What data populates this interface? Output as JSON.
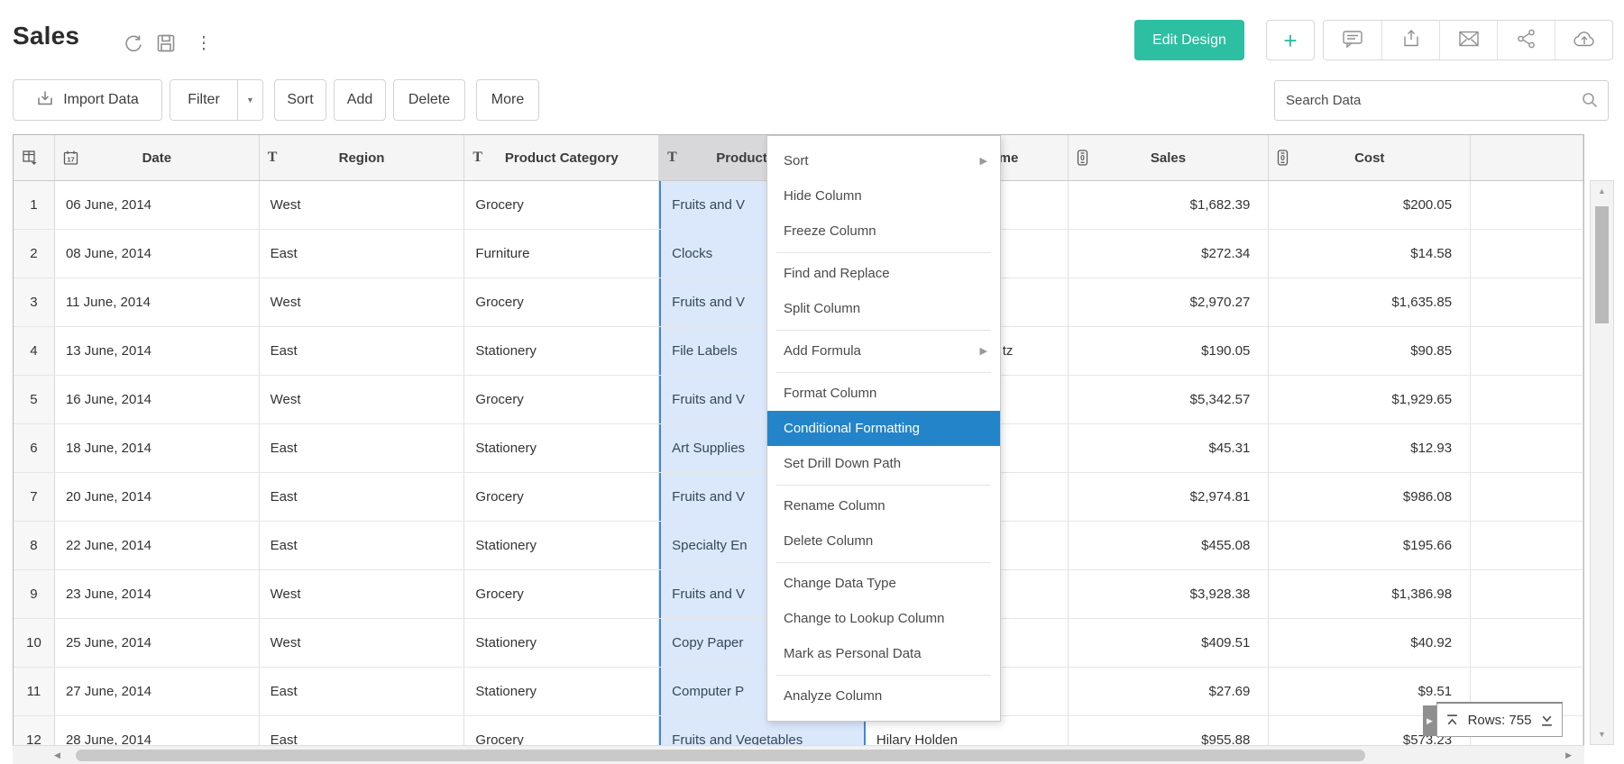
{
  "header": {
    "title": "Sales",
    "title_icons": [
      "refresh",
      "save",
      "kebab-menu"
    ],
    "edit_design_label": "Edit Design",
    "plus_label": "+",
    "action_icons": [
      "comment",
      "export",
      "email",
      "share",
      "cloud-upload"
    ]
  },
  "toolbar": {
    "import_label": "Import Data",
    "filter_label": "Filter",
    "sort_label": "Sort",
    "add_label": "Add",
    "delete_label": "Delete",
    "more_label": "More",
    "search_placeholder": "Search Data"
  },
  "table": {
    "columns": [
      {
        "key": "num",
        "label": "",
        "icon": "table-select"
      },
      {
        "key": "date",
        "label": "Date",
        "icon": "calendar"
      },
      {
        "key": "region",
        "label": "Region",
        "icon": "text"
      },
      {
        "key": "category",
        "label": "Product Category",
        "icon": "text"
      },
      {
        "key": "product",
        "label": "Product Name",
        "icon": "text",
        "selected": true
      },
      {
        "key": "customer",
        "label": "Customer Name",
        "icon": "text"
      },
      {
        "key": "sales",
        "label": "Sales",
        "icon": "number",
        "align": "right"
      },
      {
        "key": "cost",
        "label": "Cost",
        "icon": "number",
        "align": "right"
      },
      {
        "key": "blank",
        "label": ""
      }
    ],
    "rows": [
      {
        "num": "1",
        "date": "06 June, 2014",
        "region": "West",
        "category": "Grocery",
        "product": "Fruits and V",
        "customer": "",
        "sales": "$1,682.39",
        "cost": "$200.05"
      },
      {
        "num": "2",
        "date": "08 June, 2014",
        "region": "East",
        "category": "Furniture",
        "product": "Clocks",
        "customer": "",
        "sales": "$272.34",
        "cost": "$14.58"
      },
      {
        "num": "3",
        "date": "11 June, 2014",
        "region": "West",
        "category": "Grocery",
        "product": "Fruits and V",
        "customer": "",
        "sales": "$2,970.27",
        "cost": "$1,635.85"
      },
      {
        "num": "4",
        "date": "13 June, 2014",
        "region": "East",
        "category": "Stationery",
        "product": "File Labels",
        "customer": "tz",
        "customer_tail": true,
        "sales": "$190.05",
        "cost": "$90.85"
      },
      {
        "num": "5",
        "date": "16 June, 2014",
        "region": "West",
        "category": "Grocery",
        "product": "Fruits and V",
        "customer": "",
        "sales": "$5,342.57",
        "cost": "$1,929.65"
      },
      {
        "num": "6",
        "date": "18 June, 2014",
        "region": "East",
        "category": "Stationery",
        "product": "Art Supplies",
        "customer": "",
        "sales": "$45.31",
        "cost": "$12.93"
      },
      {
        "num": "7",
        "date": "20 June, 2014",
        "region": "East",
        "category": "Grocery",
        "product": "Fruits and V",
        "customer": "",
        "sales": "$2,974.81",
        "cost": "$986.08"
      },
      {
        "num": "8",
        "date": "22 June, 2014",
        "region": "East",
        "category": "Stationery",
        "product": "Specialty En",
        "customer": "",
        "sales": "$455.08",
        "cost": "$195.66"
      },
      {
        "num": "9",
        "date": "23 June, 2014",
        "region": "West",
        "category": "Grocery",
        "product": "Fruits and V",
        "customer": "",
        "sales": "$3,928.38",
        "cost": "$1,386.98"
      },
      {
        "num": "10",
        "date": "25 June, 2014",
        "region": "West",
        "category": "Stationery",
        "product": "Copy Paper",
        "customer": "",
        "sales": "$409.51",
        "cost": "$40.92"
      },
      {
        "num": "11",
        "date": "27 June, 2014",
        "region": "East",
        "category": "Stationery",
        "product": "Computer P",
        "customer": "",
        "sales": "$27.69",
        "cost": "$9.51"
      },
      {
        "num": "12",
        "date": "28 June, 2014",
        "region": "East",
        "category": "Grocery",
        "product": "Fruits and Vegetables",
        "customer": "Hilary Holden",
        "sales": "$955.88",
        "cost": "$573.23"
      }
    ]
  },
  "context_menu": {
    "items": [
      {
        "label": "Sort",
        "submenu": true
      },
      {
        "label": "Hide Column"
      },
      {
        "label": "Freeze Column",
        "separator_after": true
      },
      {
        "label": "Find and Replace"
      },
      {
        "label": "Split Column",
        "separator_after": true
      },
      {
        "label": "Add Formula",
        "submenu": true,
        "separator_after": true
      },
      {
        "label": "Format Column"
      },
      {
        "label": "Conditional Formatting",
        "highlighted": true
      },
      {
        "label": "Set Drill Down Path",
        "separator_after": true
      },
      {
        "label": "Rename Column"
      },
      {
        "label": "Delete Column",
        "separator_after": true
      },
      {
        "label": "Change Data Type"
      },
      {
        "label": "Change to Lookup Column"
      },
      {
        "label": "Mark as Personal Data",
        "separator_after": true
      },
      {
        "label": "Analyze Column"
      }
    ]
  },
  "status": {
    "rows_label": "Rows: 755"
  },
  "colors": {
    "accent_teal": "#2cbfa2",
    "menu_highlight": "#2384c9",
    "selection_border": "#4187d8",
    "selection_bg": "#dbe8fb"
  }
}
